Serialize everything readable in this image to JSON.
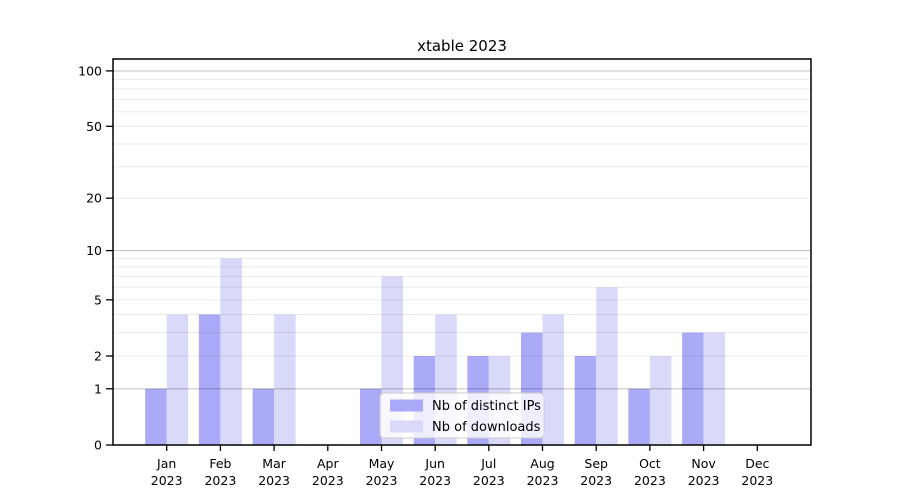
{
  "title": "xtable 2023",
  "chart_data": {
    "type": "bar",
    "title": "xtable 2023",
    "xlabel": "",
    "ylabel": "",
    "categories": [
      "Jan 2023",
      "Feb 2023",
      "Mar 2023",
      "Apr 2023",
      "May 2023",
      "Jun 2023",
      "Jul 2023",
      "Aug 2023",
      "Sep 2023",
      "Oct 2023",
      "Nov 2023",
      "Dec 2023"
    ],
    "series": [
      {
        "name": "Nb of distinct IPs",
        "color": "#aaaaf8",
        "values": [
          1,
          4,
          1,
          0,
          1,
          2,
          2,
          3,
          2,
          1,
          3,
          0
        ]
      },
      {
        "name": "Nb of downloads",
        "color": "#d9d9fa",
        "values": [
          4,
          9,
          4,
          0,
          7,
          4,
          2,
          4,
          6,
          2,
          3,
          0
        ]
      }
    ],
    "yscale": "log1p",
    "ylim": [
      0,
      116
    ],
    "yticks": [
      0,
      1,
      2,
      5,
      10,
      20,
      50,
      100
    ],
    "major_gridlines": [
      1,
      10,
      100
    ],
    "minor_gridlines": [
      2,
      3,
      4,
      5,
      6,
      7,
      8,
      9,
      20,
      30,
      40,
      50,
      60,
      70,
      80,
      90
    ],
    "grid": true,
    "legend_position": "inside-bottom-center"
  },
  "colors": {
    "background": "#ffffff",
    "axis": "#000000",
    "major_grid": "rgba(0,0,0,0.22)",
    "minor_grid": "rgba(0,0,0,0.08)",
    "legend_border": "#cccccc",
    "legend_bg_opacity": "0.8"
  }
}
